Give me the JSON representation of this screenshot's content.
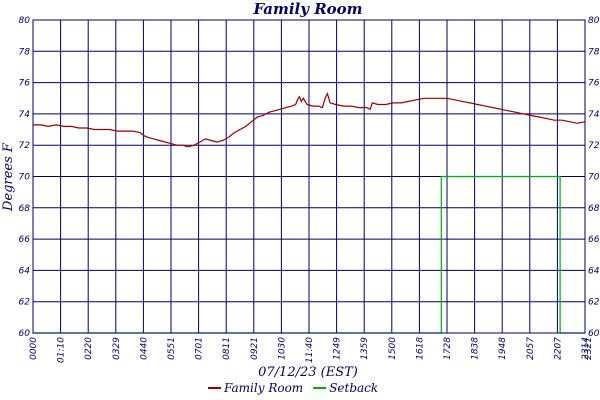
{
  "chart_data": {
    "type": "line",
    "title": "Family Room",
    "xlabel": "07/12/23 (EST)",
    "ylabel": "Degrees F",
    "ylim": [
      60,
      80
    ],
    "xlim": [
      0,
      1440
    ],
    "yticks": [
      60,
      62,
      64,
      66,
      68,
      70,
      72,
      74,
      76,
      78,
      80
    ],
    "xticks": [
      "0000",
      "01:10",
      "0220",
      "0329",
      "0440",
      "0551",
      "0701",
      "0811",
      "0921",
      "1030",
      "11:40",
      "1249",
      "1359",
      "1500",
      "1618",
      "1728",
      "1838",
      "1948",
      "2057",
      "2207",
      "2314",
      "2321"
    ],
    "grid": true,
    "legend_position": "bottom-center",
    "series": [
      {
        "name": "Family Room",
        "color": "#990000",
        "points": [
          [
            0,
            73.3
          ],
          [
            20,
            73.3
          ],
          [
            40,
            73.2
          ],
          [
            60,
            73.3
          ],
          [
            80,
            73.2
          ],
          [
            100,
            73.2
          ],
          [
            120,
            73.1
          ],
          [
            140,
            73.1
          ],
          [
            160,
            73.0
          ],
          [
            180,
            73.0
          ],
          [
            200,
            73.0
          ],
          [
            220,
            72.9
          ],
          [
            240,
            72.9
          ],
          [
            260,
            72.9
          ],
          [
            280,
            72.8
          ],
          [
            290,
            72.6
          ],
          [
            300,
            72.5
          ],
          [
            315,
            72.4
          ],
          [
            330,
            72.3
          ],
          [
            345,
            72.2
          ],
          [
            360,
            72.1
          ],
          [
            375,
            72.0
          ],
          [
            390,
            72.0
          ],
          [
            405,
            71.9
          ],
          [
            420,
            72.0
          ],
          [
            435,
            72.2
          ],
          [
            450,
            72.4
          ],
          [
            465,
            72.3
          ],
          [
            480,
            72.2
          ],
          [
            495,
            72.3
          ],
          [
            510,
            72.5
          ],
          [
            525,
            72.8
          ],
          [
            540,
            73.0
          ],
          [
            555,
            73.2
          ],
          [
            570,
            73.5
          ],
          [
            585,
            73.8
          ],
          [
            600,
            73.9
          ],
          [
            615,
            74.1
          ],
          [
            630,
            74.2
          ],
          [
            645,
            74.3
          ],
          [
            660,
            74.4
          ],
          [
            675,
            74.5
          ],
          [
            685,
            74.6
          ],
          [
            690,
            74.9
          ],
          [
            695,
            75.1
          ],
          [
            700,
            74.8
          ],
          [
            705,
            75.0
          ],
          [
            715,
            74.6
          ],
          [
            730,
            74.5
          ],
          [
            745,
            74.5
          ],
          [
            755,
            74.4
          ],
          [
            762,
            75.0
          ],
          [
            768,
            75.3
          ],
          [
            775,
            74.7
          ],
          [
            790,
            74.6
          ],
          [
            810,
            74.5
          ],
          [
            830,
            74.5
          ],
          [
            850,
            74.4
          ],
          [
            870,
            74.4
          ],
          [
            880,
            74.3
          ],
          [
            885,
            74.7
          ],
          [
            900,
            74.6
          ],
          [
            920,
            74.6
          ],
          [
            940,
            74.7
          ],
          [
            960,
            74.7
          ],
          [
            980,
            74.8
          ],
          [
            1000,
            74.9
          ],
          [
            1020,
            75.0
          ],
          [
            1040,
            75.0
          ],
          [
            1060,
            75.0
          ],
          [
            1080,
            75.0
          ],
          [
            1100,
            74.9
          ],
          [
            1120,
            74.8
          ],
          [
            1140,
            74.7
          ],
          [
            1160,
            74.6
          ],
          [
            1180,
            74.5
          ],
          [
            1200,
            74.4
          ],
          [
            1220,
            74.3
          ],
          [
            1240,
            74.2
          ],
          [
            1260,
            74.1
          ],
          [
            1280,
            74.0
          ],
          [
            1300,
            73.9
          ],
          [
            1320,
            73.8
          ],
          [
            1340,
            73.7
          ],
          [
            1360,
            73.6
          ],
          [
            1380,
            73.6
          ],
          [
            1400,
            73.5
          ],
          [
            1420,
            73.4
          ],
          [
            1440,
            73.5
          ]
        ]
      },
      {
        "name": "Setback",
        "color": "#00aa00",
        "points": [
          [
            0,
            60
          ],
          [
            1065,
            60
          ],
          [
            1065,
            70
          ],
          [
            1375,
            70
          ],
          [
            1375,
            60
          ],
          [
            1440,
            60
          ]
        ]
      }
    ]
  }
}
